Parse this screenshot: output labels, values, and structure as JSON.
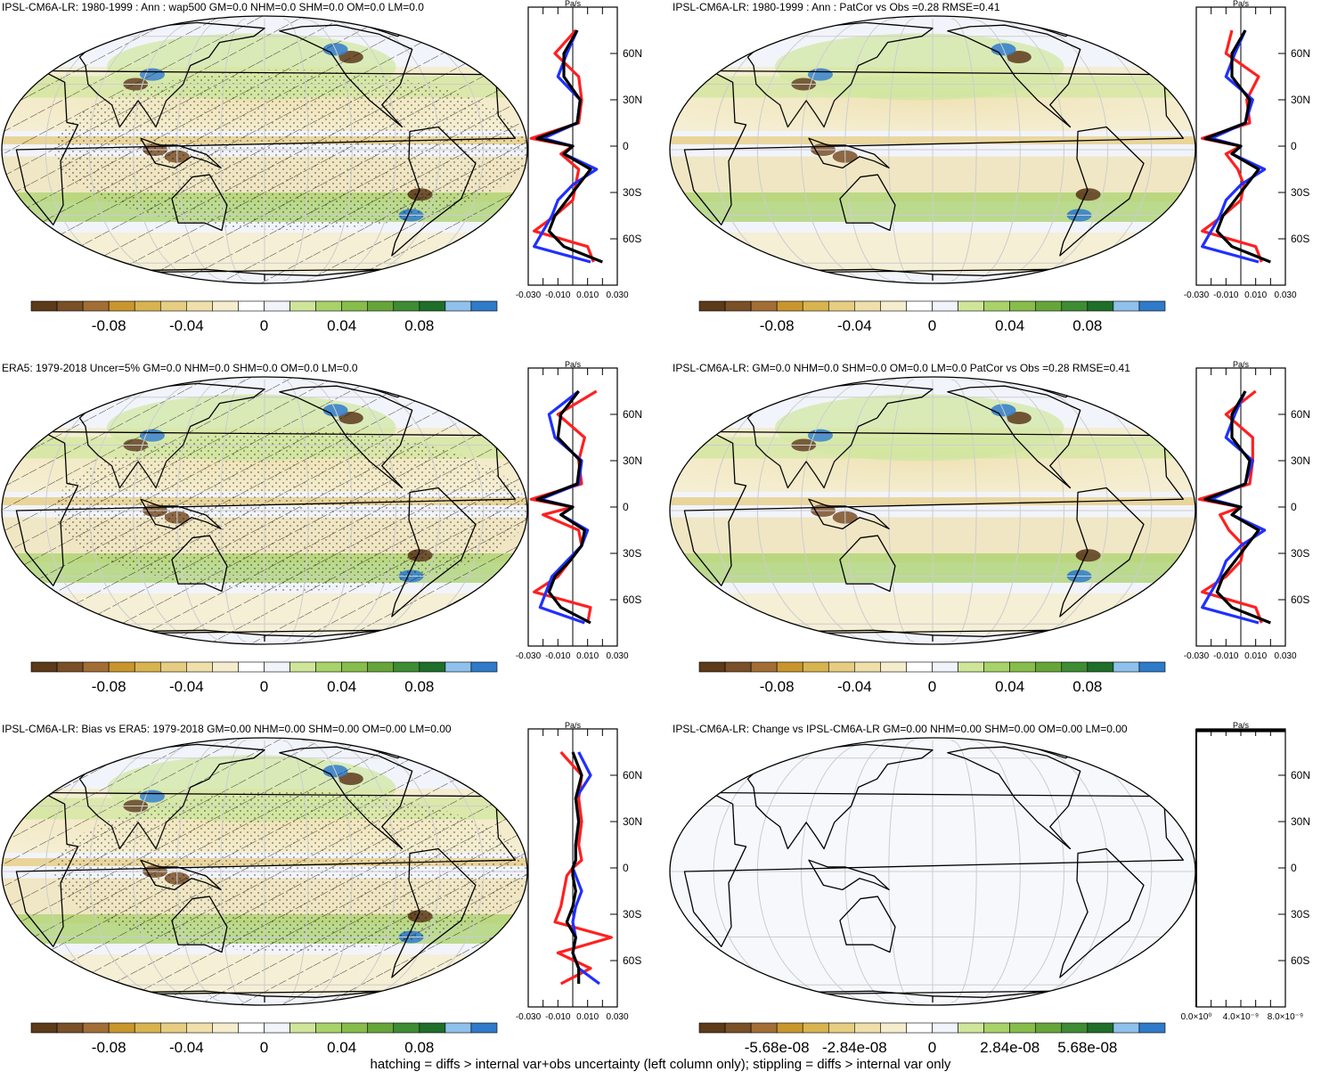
{
  "footnote": "hatching = diffs > internal var+obs uncertainty (left column only); stippling = diffs > internal var only",
  "palette": [
    "#5c3a1a",
    "#7a5028",
    "#a36e35",
    "#c9962e",
    "#d8b450",
    "#e6cd82",
    "#efe0ab",
    "#f5edcd",
    "#ffffff",
    "#f2f4fb",
    "#cfe69a",
    "#a8d26a",
    "#86bd4b",
    "#66a53a",
    "#3e8c33",
    "#1f6e2a",
    "#8fc1ec",
    "#2f7bc9"
  ],
  "lat_ticks": [
    "60N",
    "30N",
    "0",
    "30S",
    "60S"
  ],
  "panels": [
    {
      "title": "IPSL-CM6A-LR: 1980-1999 : Ann : wap500 GM=0.0 NHM=0.0 SHM=0.0 OM=0.0 LM=0.0",
      "hatched": true,
      "blank": false,
      "colorbar_labels": [
        "-0.08",
        "-0.04",
        "0",
        "0.04",
        "0.08"
      ],
      "profile": {
        "units": "Pa/s",
        "xticks": [
          "-0.030",
          "-0.010",
          "0.010",
          "0.030"
        ],
        "xlim": [
          -0.03,
          0.03
        ]
      }
    },
    {
      "title": "IPSL-CM6A-LR: 1980-1999 : Ann : PatCor vs Obs =0.28 RMSE=0.41",
      "hatched": false,
      "blank": false,
      "colorbar_labels": [
        "-0.08",
        "-0.04",
        "0",
        "0.04",
        "0.08"
      ],
      "profile": {
        "units": "Pa/s",
        "xticks": [
          "-0.030",
          "-0.010",
          "0.010",
          "0.030"
        ],
        "xlim": [
          -0.03,
          0.03
        ]
      }
    },
    {
      "title": "ERA5: 1979-2018 Uncer=5% GM=0.0 NHM=0.0 SHM=0.0 OM=0.0 LM=0.0",
      "hatched": true,
      "blank": false,
      "colorbar_labels": [
        "-0.08",
        "-0.04",
        "0",
        "0.04",
        "0.08"
      ],
      "profile": {
        "units": "Pa/s",
        "xticks": [
          "-0.030",
          "-0.010",
          "0.010",
          "0.030"
        ],
        "xlim": [
          -0.03,
          0.03
        ]
      }
    },
    {
      "title": "IPSL-CM6A-LR: GM=0.0 NHM=0.0 SHM=0.0 OM=0.0 LM=0.0 PatCor vs Obs =0.28 RMSE=0.41",
      "hatched": false,
      "blank": false,
      "colorbar_labels": [
        "-0.08",
        "-0.04",
        "0",
        "0.04",
        "0.08"
      ],
      "profile": {
        "units": "Pa/s",
        "xticks": [
          "-0.030",
          "-0.010",
          "0.010",
          "0.030"
        ],
        "xlim": [
          -0.03,
          0.03
        ]
      }
    },
    {
      "title": "IPSL-CM6A-LR: Bias vs ERA5: 1979-2018 GM=0.00 NHM=0.00 SHM=0.00 OM=0.00 LM=0.00",
      "hatched": true,
      "blank": false,
      "colorbar_labels": [
        "-0.08",
        "-0.04",
        "0",
        "0.04",
        "0.08"
      ],
      "profile": {
        "units": "Pa/s",
        "xticks": [
          "-0.030",
          "-0.010",
          "0.010",
          "0.030"
        ],
        "xlim": [
          -0.03,
          0.03
        ]
      }
    },
    {
      "title": "IPSL-CM6A-LR: Change vs IPSL-CM6A-LR GM=0.00 NHM=0.00 SHM=0.00 OM=0.00 LM=0.00",
      "hatched": false,
      "blank": true,
      "colorbar_labels": [
        "-5.68e-08",
        "-2.84e-08",
        "0",
        "2.84e-08",
        "5.68e-08"
      ],
      "profile": {
        "units": "Pa/s",
        "xticks": [
          "0.0×10⁰",
          "4.0×10⁻⁹",
          "8.0×10⁻⁹"
        ],
        "xlim": [
          0,
          8e-09
        ]
      }
    }
  ],
  "chart_data": {
    "type": "heatmap",
    "description_units": "Pa/s",
    "colorbar_range": [
      -0.1,
      0.1
    ],
    "profile_latitudes": [
      75,
      60,
      45,
      30,
      15,
      5,
      0,
      -5,
      -15,
      -25,
      -35,
      -45,
      -55,
      -65,
      -75
    ],
    "profile_series": [
      {
        "panel": 0,
        "series": [
          {
            "color": "#ff2020",
            "values": [
              0.002,
              -0.012,
              0.004,
              0.006,
              0.004,
              -0.028,
              0.0,
              -0.008,
              0.004,
              0.002,
              0.0,
              -0.012,
              -0.026,
              0.01,
              0.014
            ]
          },
          {
            "color": "#2030ff",
            "values": [
              0.003,
              -0.004,
              -0.01,
              0.005,
              0.003,
              -0.02,
              0.0,
              -0.006,
              0.016,
              0.0,
              -0.01,
              -0.014,
              -0.02,
              -0.026,
              0.012
            ]
          },
          {
            "color": "#000000",
            "values": [
              0.003,
              -0.006,
              -0.006,
              0.005,
              0.003,
              -0.024,
              0.0,
              -0.006,
              0.012,
              0.004,
              -0.004,
              -0.012,
              -0.016,
              -0.006,
              0.02
            ]
          }
        ]
      },
      {
        "panel": 1,
        "series": [
          {
            "color": "#ff2020",
            "values": [
              -0.006,
              -0.01,
              0.012,
              0.004,
              0.006,
              -0.026,
              0.0,
              -0.01,
              -0.002,
              0.002,
              0.0,
              -0.012,
              -0.026,
              0.01,
              0.014
            ]
          },
          {
            "color": "#2030ff",
            "values": [
              0.003,
              -0.004,
              -0.01,
              0.008,
              0.003,
              -0.02,
              0.0,
              -0.006,
              0.016,
              0.0,
              -0.01,
              -0.014,
              -0.02,
              -0.026,
              0.012
            ]
          },
          {
            "color": "#000000",
            "values": [
              0.003,
              -0.006,
              -0.006,
              0.006,
              0.003,
              -0.024,
              0.0,
              -0.006,
              0.012,
              0.004,
              -0.004,
              -0.012,
              -0.016,
              -0.006,
              0.02
            ]
          }
        ]
      },
      {
        "panel": 2,
        "series": [
          {
            "color": "#ff2020",
            "values": [
              0.016,
              -0.01,
              0.008,
              0.004,
              0.006,
              -0.028,
              0.0,
              -0.02,
              0.004,
              0.006,
              -0.002,
              -0.01,
              -0.026,
              0.012,
              0.01
            ]
          },
          {
            "color": "#2030ff",
            "values": [
              0.004,
              -0.016,
              -0.012,
              0.006,
              0.004,
              -0.022,
              0.0,
              -0.008,
              0.01,
              0.006,
              -0.004,
              -0.014,
              -0.018,
              -0.022,
              0.008
            ]
          },
          {
            "color": "#000000",
            "values": [
              0.004,
              -0.008,
              -0.01,
              0.005,
              0.003,
              -0.024,
              0.0,
              -0.008,
              0.008,
              0.006,
              -0.002,
              -0.012,
              -0.016,
              -0.008,
              0.012
            ]
          }
        ]
      },
      {
        "panel": 3,
        "series": [
          {
            "color": "#ff2020",
            "values": [
              0.01,
              -0.01,
              0.008,
              0.008,
              0.006,
              -0.028,
              0.0,
              -0.014,
              -0.008,
              0.002,
              0.0,
              -0.01,
              -0.026,
              0.01,
              0.014
            ]
          },
          {
            "color": "#2030ff",
            "values": [
              0.003,
              -0.004,
              -0.01,
              0.008,
              0.003,
              -0.02,
              0.0,
              -0.006,
              0.016,
              0.0,
              -0.01,
              -0.014,
              -0.02,
              -0.026,
              0.012
            ]
          },
          {
            "color": "#000000",
            "values": [
              0.003,
              -0.006,
              -0.006,
              0.006,
              0.003,
              -0.024,
              0.0,
              -0.006,
              0.012,
              0.004,
              -0.004,
              -0.012,
              -0.016,
              -0.006,
              0.02
            ]
          }
        ]
      },
      {
        "panel": 4,
        "series": [
          {
            "color": "#ff2020",
            "values": [
              -0.008,
              0.006,
              0.004,
              0.006,
              0.004,
              0.006,
              0.0,
              -0.004,
              -0.006,
              -0.008,
              -0.012,
              0.026,
              -0.01,
              0.012,
              -0.008
            ]
          },
          {
            "color": "#2030ff",
            "values": [
              0.004,
              0.012,
              0.002,
              0.004,
              0.002,
              0.002,
              0.0,
              0.002,
              0.006,
              0.002,
              0.0,
              0.002,
              0.0,
              0.004,
              0.018
            ]
          },
          {
            "color": "#000000",
            "values": [
              0.0,
              0.006,
              0.002,
              0.004,
              0.002,
              0.002,
              0.0,
              0.0,
              0.002,
              0.0,
              -0.004,
              0.002,
              0.0,
              0.004,
              0.004
            ]
          }
        ]
      },
      {
        "panel": 5,
        "series": [
          {
            "color": "#000000",
            "values": [
              0,
              0,
              0,
              0,
              0,
              0,
              0,
              0,
              0,
              0,
              0,
              0,
              0,
              0,
              0
            ]
          }
        ]
      }
    ]
  }
}
